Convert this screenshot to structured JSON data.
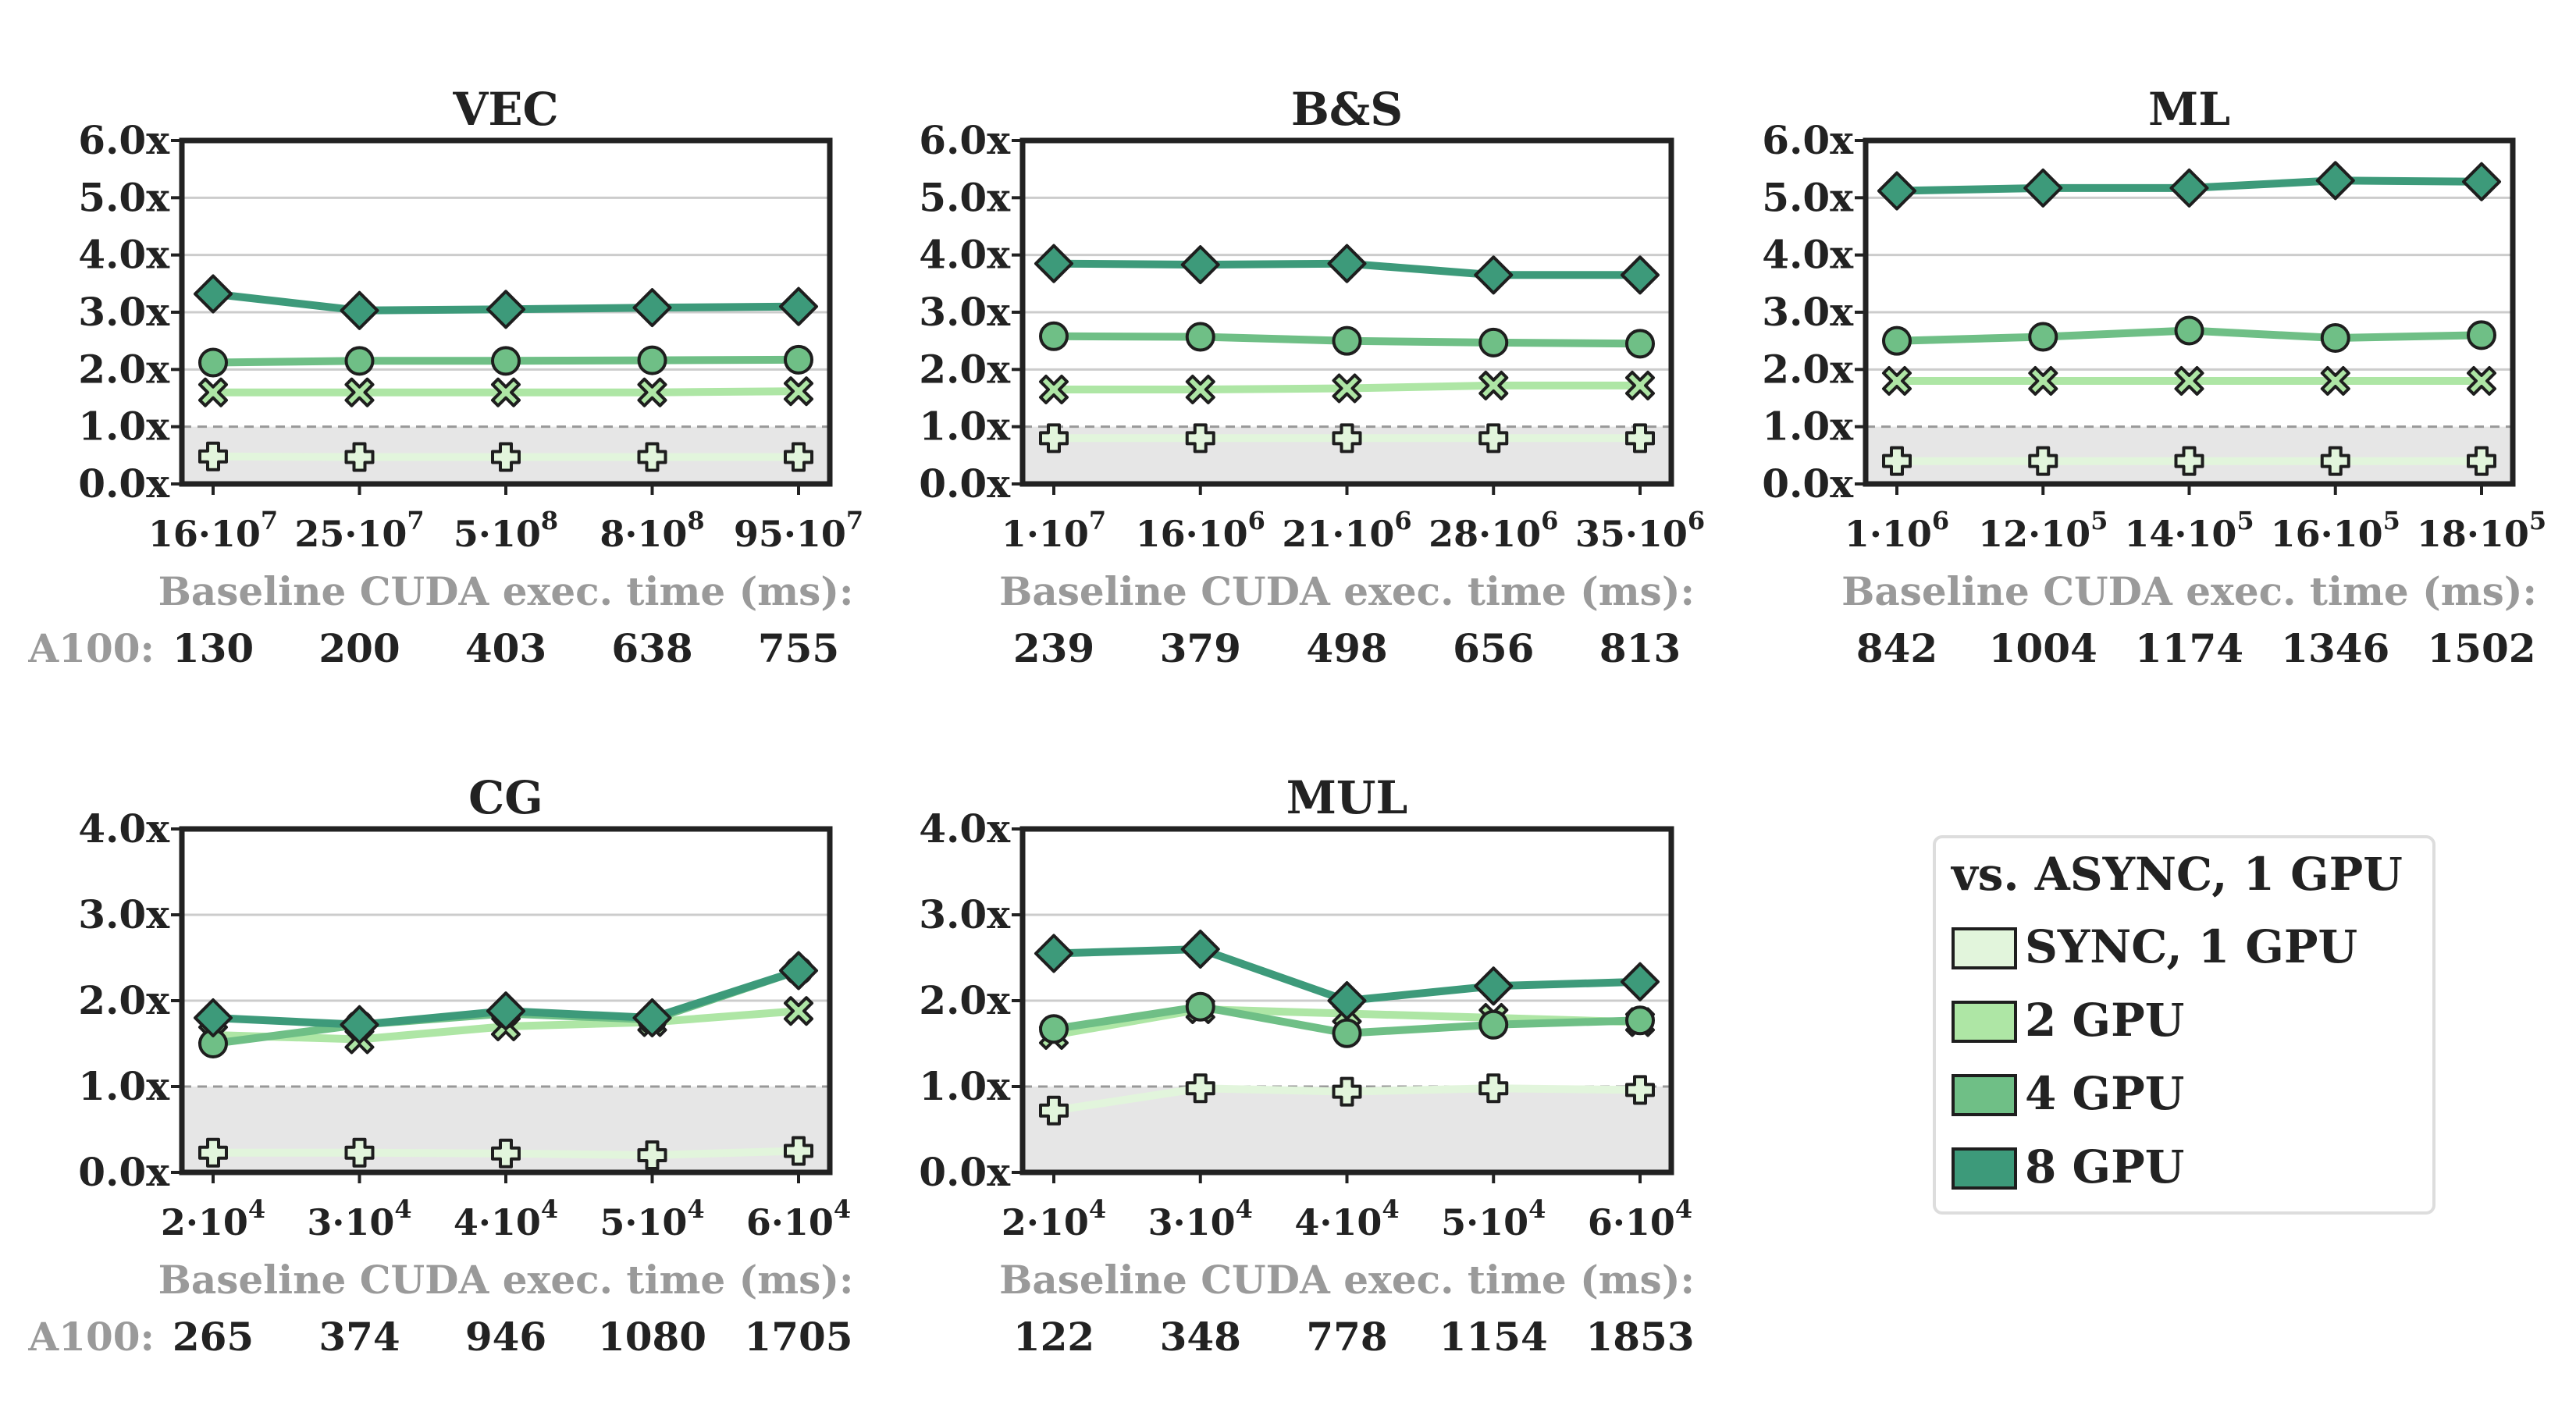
{
  "chart_data": [
    {
      "type": "line",
      "title": "VEC",
      "ylim": [
        0,
        6
      ],
      "yticks": [
        "0.0x",
        "1.0x",
        "2.0x",
        "3.0x",
        "4.0x",
        "5.0x",
        "6.0x"
      ],
      "categories": [
        "16·10^7",
        "25·10^7",
        "5·10^8",
        "8·10^8",
        "95·10^7"
      ],
      "xtick_mantissa": [
        "16",
        "25",
        "5",
        "8",
        "95"
      ],
      "xtick_exponent": [
        "7",
        "7",
        "8",
        "8",
        "7"
      ],
      "caption": "Baseline CUDA exec. time (ms):",
      "gpu_label": "A100:",
      "baseline": [
        "130",
        "200",
        "403",
        "638",
        "755"
      ],
      "series": [
        {
          "name": "SYNC, 1 GPU",
          "values": [
            0.48,
            0.47,
            0.47,
            0.47,
            0.47
          ]
        },
        {
          "name": "2 GPU",
          "values": [
            1.6,
            1.6,
            1.6,
            1.6,
            1.62
          ]
        },
        {
          "name": "4 GPU",
          "values": [
            2.12,
            2.15,
            2.15,
            2.16,
            2.17
          ]
        },
        {
          "name": "8 GPU",
          "values": [
            3.32,
            3.03,
            3.05,
            3.08,
            3.1
          ]
        }
      ]
    },
    {
      "type": "line",
      "title": "B&S",
      "ylim": [
        0,
        6
      ],
      "yticks": [
        "0.0x",
        "1.0x",
        "2.0x",
        "3.0x",
        "4.0x",
        "5.0x",
        "6.0x"
      ],
      "categories": [
        "1·10^7",
        "16·10^6",
        "21·10^6",
        "28·10^6",
        "35·10^6"
      ],
      "xtick_mantissa": [
        "1",
        "16",
        "21",
        "28",
        "35"
      ],
      "xtick_exponent": [
        "7",
        "6",
        "6",
        "6",
        "6"
      ],
      "caption": "Baseline CUDA exec. time (ms):",
      "gpu_label": "",
      "baseline": [
        "239",
        "379",
        "498",
        "656",
        "813"
      ],
      "series": [
        {
          "name": "SYNC, 1 GPU",
          "values": [
            0.8,
            0.8,
            0.8,
            0.8,
            0.8
          ]
        },
        {
          "name": "2 GPU",
          "values": [
            1.65,
            1.65,
            1.67,
            1.72,
            1.72
          ]
        },
        {
          "name": "4 GPU",
          "values": [
            2.58,
            2.57,
            2.5,
            2.47,
            2.45
          ]
        },
        {
          "name": "8 GPU",
          "values": [
            3.85,
            3.83,
            3.85,
            3.65,
            3.65
          ]
        }
      ]
    },
    {
      "type": "line",
      "title": "ML",
      "ylim": [
        0,
        6
      ],
      "yticks": [
        "0.0x",
        "1.0x",
        "2.0x",
        "3.0x",
        "4.0x",
        "5.0x",
        "6.0x"
      ],
      "categories": [
        "1·10^6",
        "12·10^5",
        "14·10^5",
        "16·10^5",
        "18·10^5"
      ],
      "xtick_mantissa": [
        "1",
        "12",
        "14",
        "16",
        "18"
      ],
      "xtick_exponent": [
        "6",
        "5",
        "5",
        "5",
        "5"
      ],
      "caption": "Baseline CUDA exec. time (ms):",
      "gpu_label": "",
      "baseline": [
        "842",
        "1004",
        "1174",
        "1346",
        "1502"
      ],
      "series": [
        {
          "name": "SYNC, 1 GPU",
          "values": [
            0.4,
            0.4,
            0.4,
            0.4,
            0.4
          ]
        },
        {
          "name": "2 GPU",
          "values": [
            1.8,
            1.8,
            1.8,
            1.8,
            1.8
          ]
        },
        {
          "name": "4 GPU",
          "values": [
            2.5,
            2.57,
            2.68,
            2.55,
            2.6
          ]
        },
        {
          "name": "8 GPU",
          "values": [
            5.12,
            5.17,
            5.17,
            5.3,
            5.28
          ]
        }
      ]
    },
    {
      "type": "line",
      "title": "CG",
      "ylim": [
        0,
        4
      ],
      "yticks": [
        "0.0x",
        "1.0x",
        "2.0x",
        "3.0x",
        "4.0x"
      ],
      "categories": [
        "2·10^4",
        "3·10^4",
        "4·10^4",
        "5·10^4",
        "6·10^4"
      ],
      "xtick_mantissa": [
        "2",
        "3",
        "4",
        "5",
        "6"
      ],
      "xtick_exponent": [
        "4",
        "4",
        "4",
        "4",
        "4"
      ],
      "caption": "Baseline CUDA exec. time (ms):",
      "gpu_label": "A100:",
      "baseline": [
        "265",
        "374",
        "946",
        "1080",
        "1705"
      ],
      "series": [
        {
          "name": "SYNC, 1 GPU",
          "values": [
            0.23,
            0.23,
            0.22,
            0.2,
            0.25
          ]
        },
        {
          "name": "2 GPU",
          "values": [
            1.6,
            1.55,
            1.7,
            1.75,
            1.88
          ]
        },
        {
          "name": "4 GPU",
          "values": [
            1.5,
            1.72,
            1.85,
            1.78,
            2.35
          ]
        },
        {
          "name": "8 GPU",
          "values": [
            1.8,
            1.72,
            1.88,
            1.8,
            2.35
          ]
        }
      ]
    },
    {
      "type": "line",
      "title": "MUL",
      "ylim": [
        0,
        4
      ],
      "yticks": [
        "0.0x",
        "1.0x",
        "2.0x",
        "3.0x",
        "4.0x"
      ],
      "categories": [
        "2·10^4",
        "3·10^4",
        "4·10^4",
        "5·10^4",
        "6·10^4"
      ],
      "xtick_mantissa": [
        "2",
        "3",
        "4",
        "5",
        "6"
      ],
      "xtick_exponent": [
        "4",
        "4",
        "4",
        "4",
        "4"
      ],
      "caption": "Baseline CUDA exec. time (ms):",
      "gpu_label": "",
      "baseline": [
        "122",
        "348",
        "778",
        "1154",
        "1853"
      ],
      "series": [
        {
          "name": "SYNC, 1 GPU",
          "values": [
            0.72,
            0.98,
            0.94,
            0.98,
            0.96
          ]
        },
        {
          "name": "2 GPU",
          "values": [
            1.6,
            1.9,
            1.85,
            1.8,
            1.75
          ]
        },
        {
          "name": "4 GPU",
          "values": [
            1.67,
            1.93,
            1.62,
            1.72,
            1.77
          ]
        },
        {
          "name": "8 GPU",
          "values": [
            2.55,
            2.6,
            2.0,
            2.17,
            2.22
          ]
        }
      ]
    }
  ],
  "legend": {
    "title": "vs. ASYNC, 1 GPU",
    "placement": "bottom-right",
    "entries": [
      "SYNC, 1 GPU",
      "2 GPU",
      "4 GPU",
      "8 GPU"
    ]
  },
  "colors": {
    "SYNC, 1 GPU": "#e2f5dc",
    "2 GPU": "#aee6a5",
    "4 GPU": "#6fbf86",
    "8 GPU": "#3d9a7a",
    "below_baseline_band": "#e6e6e6",
    "gridline": "#cccccc",
    "axis_frame": "#222222"
  },
  "markers": {
    "SYNC, 1 GPU": "plus",
    "2 GPU": "x",
    "4 GPU": "circle",
    "8 GPU": "diamond"
  }
}
